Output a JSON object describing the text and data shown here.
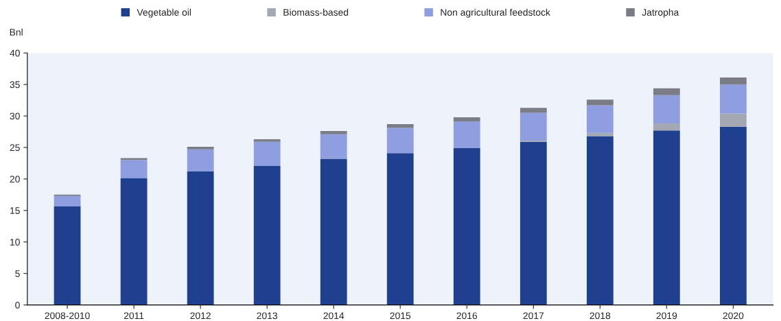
{
  "chart_data": {
    "type": "bar",
    "stacked": true,
    "ylabel": "Bnl",
    "categories": [
      "2008-2010",
      "2011",
      "2012",
      "2013",
      "2014",
      "2015",
      "2016",
      "2017",
      "2018",
      "2019",
      "2020"
    ],
    "series": [
      {
        "name": "Vegetable oil",
        "color": "#1f3f8f",
        "values": [
          15.7,
          20.1,
          21.2,
          22.1,
          23.2,
          24.1,
          24.9,
          25.9,
          26.8,
          27.7,
          28.3
        ]
      },
      {
        "name": "Biomass-based",
        "color": "#a3a8b3",
        "values": [
          0,
          0,
          0,
          0,
          0,
          0,
          0,
          0.2,
          0.5,
          1.1,
          2.1
        ]
      },
      {
        "name": "Non agricultural feedstock",
        "color": "#8f9ee0",
        "values": [
          1.6,
          2.9,
          3.5,
          3.8,
          3.9,
          4.0,
          4.2,
          4.4,
          4.4,
          4.5,
          4.6
        ]
      },
      {
        "name": "Jatropha",
        "color": "#7a7d85",
        "values": [
          0.2,
          0.3,
          0.4,
          0.4,
          0.5,
          0.6,
          0.7,
          0.8,
          0.9,
          1.1,
          1.1
        ]
      }
    ],
    "ylim": [
      0,
      40
    ],
    "yticks": [
      0,
      5,
      10,
      15,
      20,
      25,
      30,
      35,
      40
    ],
    "legend": "top",
    "grid": false
  }
}
